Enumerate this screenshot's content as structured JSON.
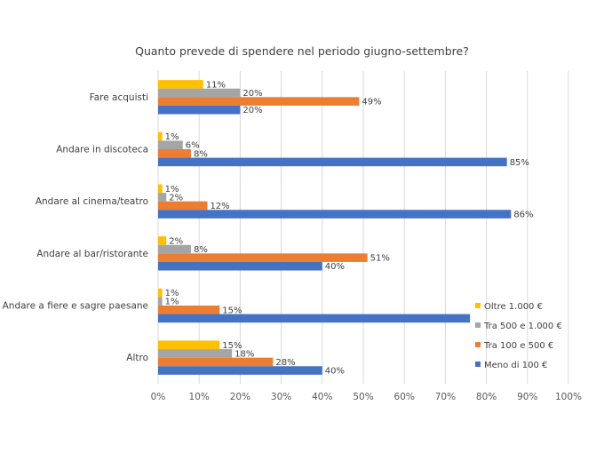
{
  "chart_data": {
    "type": "bar",
    "orientation": "horizontal",
    "title": "Quanto prevede di spendere nel periodo giugno-settembre?",
    "categories": [
      "Fare acquisti",
      "Andare in discoteca",
      "Andare al cinema/teatro",
      "Andare al bar/ristorante",
      "Andare a fiere e sagre paesane",
      "Altro"
    ],
    "series": [
      {
        "name": "Oltre 1.000 €",
        "color": "#FFC000",
        "values": [
          11,
          1,
          1,
          2,
          1,
          15
        ],
        "labels": [
          "11%",
          "1%",
          "1%",
          "2%",
          "1%",
          "15%"
        ]
      },
      {
        "name": "Tra 500 e 1.000 €",
        "color": "#A5A5A5",
        "values": [
          20,
          6,
          2,
          8,
          1,
          18
        ],
        "labels": [
          "20%",
          "6%",
          "2%",
          "8%",
          "1%",
          "18%"
        ]
      },
      {
        "name": "Tra 100 e 500 €",
        "color": "#ED7D31",
        "values": [
          49,
          8,
          12,
          51,
          15,
          28
        ],
        "labels": [
          "49%",
          "8%",
          "12%",
          "51%",
          "15%",
          "28%"
        ]
      },
      {
        "name": "Meno di 100 €",
        "color": "#4472C4",
        "values": [
          20,
          85,
          86,
          40,
          76,
          40
        ],
        "labels": [
          "20%",
          "85%",
          "86%",
          "40%",
          "",
          "40%"
        ]
      }
    ],
    "xlim": [
      0,
      100
    ],
    "xticks": [
      "0%",
      "10%",
      "20%",
      "30%",
      "40%",
      "50%",
      "60%",
      "70%",
      "80%",
      "90%",
      "100%"
    ],
    "grid": true,
    "legend_position": "bottom-right (inside plot)",
    "gridline_color": "#D9D9D9"
  }
}
